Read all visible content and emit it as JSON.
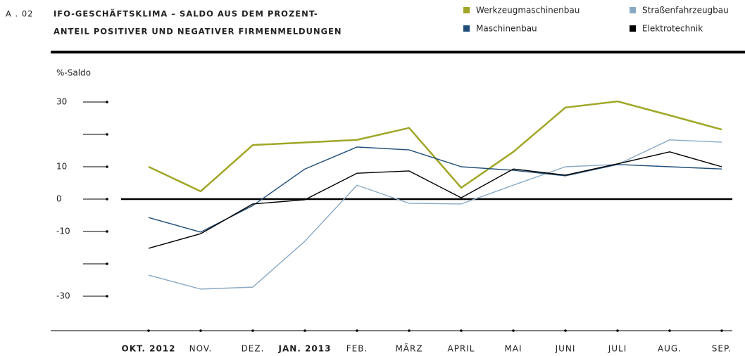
{
  "chart_data": {
    "type": "line",
    "label": "A . 02",
    "title": [
      "IFO-GESCHÄFTSKLIMA – SALDO AUS DEM PROZENT-",
      "ANTEIL POSITIVER UND NEGATIVER FIRMENMELDUNGEN"
    ],
    "y_label": "%-Saldo",
    "categories": [
      "OKT. 2012",
      "NOV.",
      "DEZ.",
      "JAN. 2013",
      "FEB.",
      "MÄRZ",
      "APRIL",
      "MAI",
      "JUNI",
      "JULI",
      "AUG.",
      "SEP."
    ],
    "bold_categories": [
      0,
      3
    ],
    "series": [
      {
        "name": "Werkzeugmaschinenbau",
        "color": "#a0a626",
        "values": [
          10,
          2.4,
          16.7,
          17.5,
          18.3,
          22,
          3.5,
          14.6,
          28.3,
          30.2,
          25.9,
          21.5
        ]
      },
      {
        "name": "Straßenfahrzeugbau",
        "color": "#8aa9c4",
        "values": [
          -23.5,
          -27.8,
          -27.2,
          -13,
          4.3,
          -1.3,
          -1.5,
          4.3,
          10,
          10.7,
          18.3,
          17.6
        ]
      },
      {
        "name": "Maschinenbau",
        "color": "#1f4e79",
        "values": [
          -5.7,
          -10.2,
          -2,
          9.3,
          16.1,
          15.2,
          10,
          8.9,
          7.2,
          10.7,
          10,
          9.3
        ]
      },
      {
        "name": "Elektrotechnik",
        "color": "#000000",
        "values": [
          -15.2,
          -10.7,
          -1.5,
          -0.2,
          8,
          8.7,
          0.4,
          9.3,
          7.4,
          10.9,
          14.6,
          10
        ]
      }
    ],
    "ylim": [
      -40,
      35
    ],
    "yticks": [
      30,
      10,
      0,
      -10,
      -30
    ],
    "yminor_ticks": [
      20,
      -20
    ]
  }
}
